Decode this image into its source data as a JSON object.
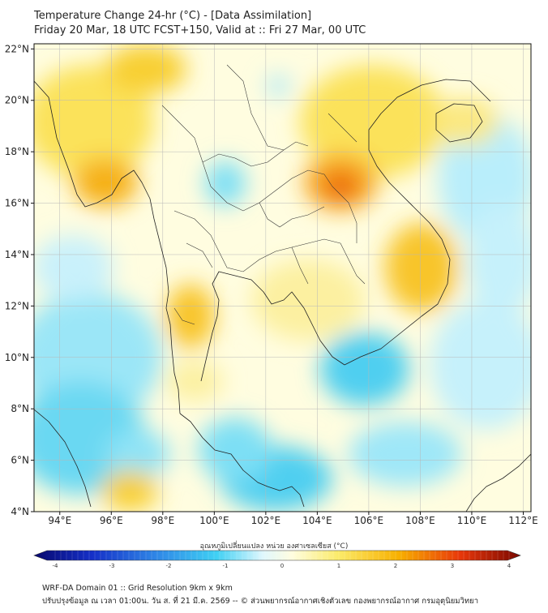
{
  "header": {
    "title": "Temperature Change 24-hr (°C) - [Data Assimilation]",
    "subtitle": "Friday 20 Mar, 18 UTC FCST+150, Valid at :: Fri 27 Mar, 00 UTC"
  },
  "map": {
    "extent": {
      "lon_min": 93,
      "lon_max": 112.3,
      "lat_min": 4,
      "lat_max": 22.2
    },
    "lat_ticks": [
      {
        "value": 22,
        "label": "22°N"
      },
      {
        "value": 20,
        "label": "20°N"
      },
      {
        "value": 18,
        "label": "18°N"
      },
      {
        "value": 16,
        "label": "16°N"
      },
      {
        "value": 14,
        "label": "14°N"
      },
      {
        "value": 12,
        "label": "12°N"
      },
      {
        "value": 10,
        "label": "10°N"
      },
      {
        "value": 8,
        "label": "8°N"
      },
      {
        "value": 6,
        "label": "6°N"
      },
      {
        "value": 4,
        "label": "4°N"
      }
    ],
    "lon_ticks": [
      {
        "value": 94,
        "label": "94°E"
      },
      {
        "value": 96,
        "label": "96°E"
      },
      {
        "value": 98,
        "label": "98°E"
      },
      {
        "value": 100,
        "label": "100°E"
      },
      {
        "value": 102,
        "label": "102°E"
      },
      {
        "value": 104,
        "label": "104°E"
      },
      {
        "value": 106,
        "label": "106°E"
      },
      {
        "value": 108,
        "label": "108°E"
      },
      {
        "value": 110,
        "label": "110°E"
      },
      {
        "value": 112,
        "label": "112°E"
      }
    ],
    "grid": true,
    "colors": {
      "background": "#fffde0",
      "cool": "#5ad4f0",
      "warm": "#f8c000",
      "hot": "#e94b10",
      "coast": "#222222"
    }
  },
  "colorbar": {
    "label": "อุณหภูมิเปลี่ยนแปลง หน่วย องศาเซลเซียส (°C)",
    "min": -4,
    "max": 4,
    "ticks": [
      "-4",
      "-3",
      "-2",
      "-1",
      "0",
      "1",
      "2",
      "3",
      "4"
    ],
    "tick_values": [
      -4,
      -3,
      -2,
      -1,
      0,
      1,
      2,
      3,
      4
    ]
  },
  "footer": {
    "line1": "WRF-DA Domain 01 :: Grid Resolution 9km x 9km",
    "line2": "ปรับปรุงข้อมูล ณ เวลา 01:00น. วัน ส. ที่ 21 มี.ค. 2569 -- © ส่วนพยากรณ์อากาศเชิงตัวเลข กองพยากรณ์อากาศ กรมอุตุนิยมวิทยา"
  }
}
